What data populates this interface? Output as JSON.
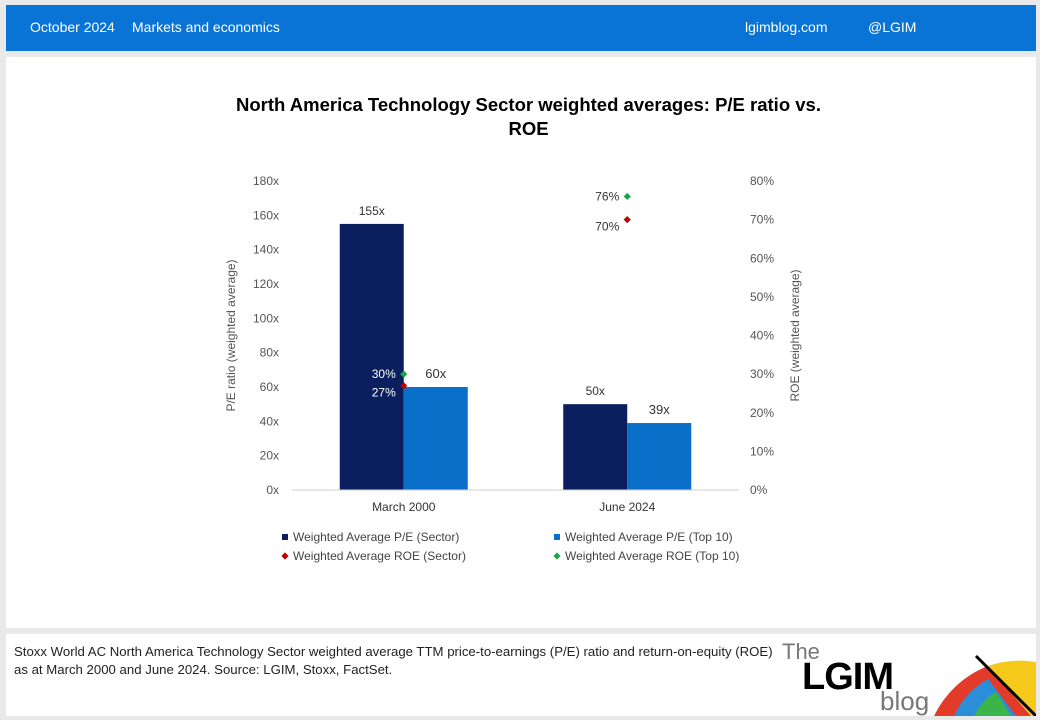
{
  "header": {
    "date": "October 2024",
    "section": "Markets and economics",
    "site": "lgimblog.com",
    "handle": "@LGIM"
  },
  "footer": {
    "caption": "Stoxx World AC North America Technology Sector weighted average TTM price-to-earnings (P/E) ratio and return-on-equity (ROE) as at March 2000 and June 2024. Source: LGIM, Stoxx, FactSet.",
    "logo_the": "The",
    "logo_lgim": "LGIM",
    "logo_blog": "blog"
  },
  "colors": {
    "pe_sector": "#0b1f5e",
    "pe_top10": "#0a6fc9",
    "roe_sector": "#c00000",
    "roe_top10": "#1aa54a",
    "header_bg": "#0a73d6"
  },
  "chart_data": {
    "type": "bar",
    "title": "North America Technology Sector weighted averages: P/E ratio vs. ROE",
    "categories": [
      "March 2000",
      "June 2024"
    ],
    "ylabel": "P/E ratio (weighted average)",
    "y2label": "ROE (weighted average)",
    "ylim": [
      0,
      180
    ],
    "y2lim": [
      0,
      80
    ],
    "yticks": [
      "0x",
      "20x",
      "40x",
      "60x",
      "80x",
      "100x",
      "120x",
      "140x",
      "160x",
      "180x"
    ],
    "y2ticks": [
      "0%",
      "10%",
      "20%",
      "30%",
      "40%",
      "50%",
      "60%",
      "70%",
      "80%"
    ],
    "grid": false,
    "legend": "bottom",
    "bar_series": [
      {
        "name": "Weighted Average P/E (Sector)",
        "values": [
          155,
          50
        ],
        "labels": [
          "155x",
          "50x"
        ]
      },
      {
        "name": "Weighted Average P/E (Top 10)",
        "values": [
          60,
          39
        ],
        "labels": [
          "60x",
          "39x"
        ]
      }
    ],
    "point_series": [
      {
        "name": "Weighted Average ROE (Sector)",
        "values": [
          27,
          70
        ],
        "labels": [
          "27%",
          "70%"
        ]
      },
      {
        "name": "Weighted Average ROE (Top 10)",
        "values": [
          30,
          76
        ],
        "labels": [
          "30%",
          "76%"
        ]
      }
    ]
  }
}
